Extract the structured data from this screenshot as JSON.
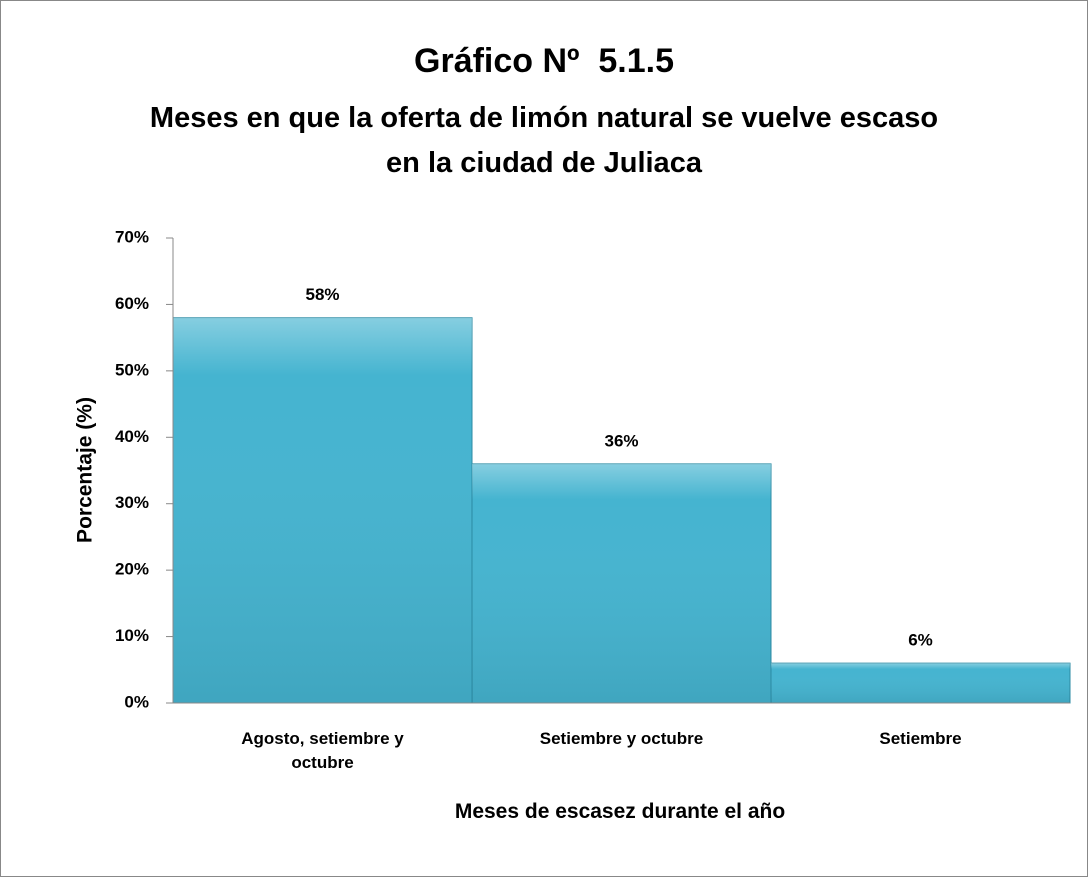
{
  "chart_data": {
    "type": "bar",
    "title": "Gráfico Nº  5.1.5",
    "subtitle": "Meses en que la oferta de limón natural se vuelve escaso en la ciudad de Juliaca",
    "x_label": "Meses de escasez durante el año",
    "y_label": "Porcentaje (%)",
    "categories": [
      "Agosto, setiembre y octubre",
      "Setiembre y octubre",
      "Setiembre"
    ],
    "values": [
      58,
      36,
      6
    ],
    "value_labels": [
      "58%",
      "36%",
      "6%"
    ],
    "color": "#45b4d0",
    "ylim": [
      0,
      70
    ],
    "yticks": [
      {
        "value": 0,
        "label": "0%"
      },
      {
        "value": 10,
        "label": "10%"
      },
      {
        "value": 20,
        "label": "20%"
      },
      {
        "value": 30,
        "label": "30%"
      },
      {
        "value": 40,
        "label": "40%"
      },
      {
        "value": 50,
        "label": "50%"
      },
      {
        "value": 60,
        "label": "60%"
      },
      {
        "value": 70,
        "label": "70%"
      }
    ],
    "grid": false
  }
}
